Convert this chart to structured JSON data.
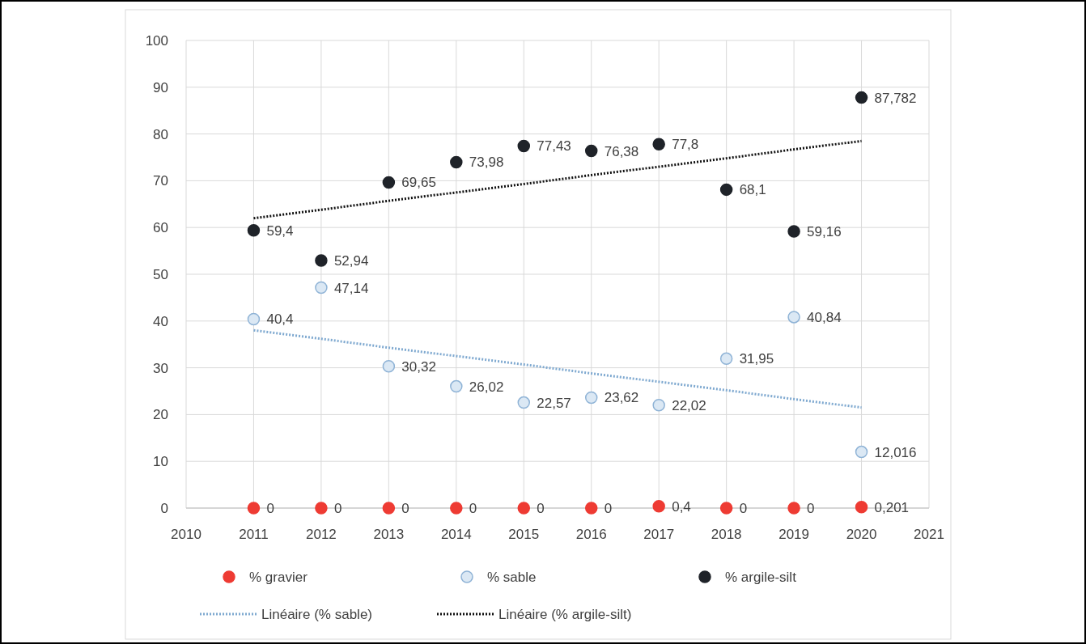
{
  "chart_data": {
    "type": "scatter",
    "x": [
      2011,
      2012,
      2013,
      2014,
      2015,
      2016,
      2017,
      2018,
      2019,
      2020
    ],
    "series": [
      {
        "name": "% gravier",
        "color": "#ee3b33",
        "values": [
          0,
          0,
          0,
          0,
          0,
          0,
          0.4,
          0,
          0,
          0.201
        ],
        "value_labels": [
          "0",
          "0",
          "0",
          "0",
          "0",
          "0",
          "0,4",
          "0",
          "0",
          "0,201"
        ]
      },
      {
        "name": "% sable",
        "color": "#dbe8f4",
        "values": [
          40.4,
          47.14,
          30.32,
          26.02,
          22.57,
          23.62,
          22.02,
          31.95,
          40.84,
          12.016
        ],
        "value_labels": [
          "40,4",
          "47,14",
          "30,32",
          "26,02",
          "22,57",
          "23,62",
          "22,02",
          "31,95",
          "40,84",
          "12,016"
        ]
      },
      {
        "name": "% argile-silt",
        "color": "#1f2329",
        "values": [
          59.4,
          52.94,
          69.65,
          73.98,
          77.43,
          76.38,
          77.8,
          68.1,
          59.16,
          87.782
        ],
        "value_labels": [
          "59,4",
          "52,94",
          "69,65",
          "73,98",
          "77,43",
          "76,38",
          "77,8",
          "68,1",
          "59,16",
          "87,782"
        ]
      },
      {
        "name": "Linéaire (% sable)",
        "type": "line",
        "line_style": "dotted",
        "marker": "none",
        "color": "#7fa9d0",
        "values": [
          38,
          36.2,
          34.3,
          32.5,
          30.7,
          28.8,
          27,
          25.2,
          23.3,
          21.5
        ]
      },
      {
        "name": "Linéaire (% argile-silt)",
        "type": "line",
        "line_style": "dotted",
        "marker": "none",
        "color": "#111111",
        "values": [
          62,
          63.8,
          65.7,
          67.5,
          69.3,
          71.2,
          73,
          74.8,
          76.7,
          78.5
        ]
      }
    ],
    "marker": "circle",
    "xlim": [
      2010,
      2021
    ],
    "xticks": [
      2010,
      2011,
      2012,
      2013,
      2014,
      2015,
      2016,
      2017,
      2018,
      2019,
      2020,
      2021
    ],
    "ylim": [
      0,
      100
    ],
    "yticks": [
      0,
      10,
      20,
      30,
      40,
      50,
      60,
      70,
      80,
      90,
      100
    ],
    "grid": true,
    "legend": "bottom"
  }
}
